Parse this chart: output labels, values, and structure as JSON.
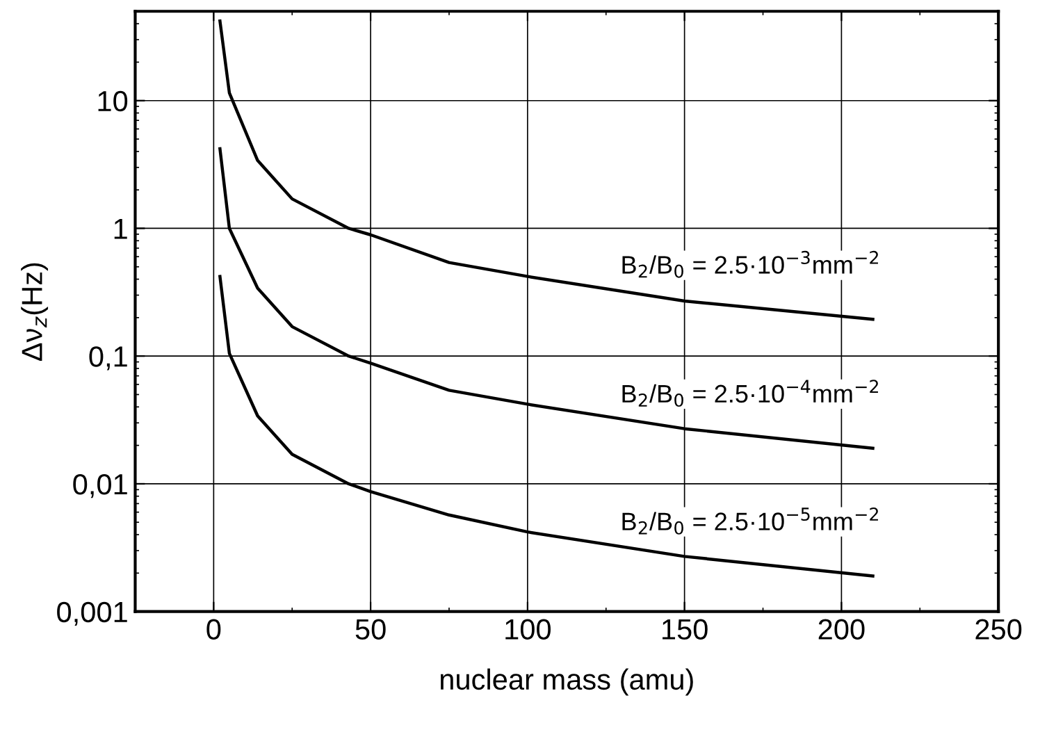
{
  "chart_data": {
    "type": "line",
    "xlabel": "nuclear mass (amu)",
    "ylabel": "Δν$_{z}$(Hz)",
    "log": "y",
    "grid": true,
    "marker": "none",
    "line_style": "solid",
    "xlim": [
      -25,
      250
    ],
    "xticks": [
      0,
      50,
      100,
      150,
      200,
      250
    ],
    "ylim": [
      0.001,
      50
    ],
    "yticks": [
      {
        "value": 0.001,
        "label": "0,001"
      },
      {
        "value": 0.01,
        "label": "0,01"
      },
      {
        "value": 0.1,
        "label": "0,1"
      },
      {
        "value": 1,
        "label": "1"
      },
      {
        "value": 10,
        "label": "10"
      }
    ],
    "x": [
      2,
      5,
      14,
      25,
      43,
      50,
      75,
      100,
      150,
      210
    ],
    "series": [
      {
        "color": "#000000",
        "values": [
          42,
          11.5,
          3.4,
          1.7,
          1.0,
          0.89,
          0.54,
          0.42,
          0.27,
          0.194
        ]
      },
      {
        "color": "#000000",
        "values": [
          4.2,
          1.0,
          0.34,
          0.17,
          0.1,
          0.088,
          0.054,
          0.042,
          0.027,
          0.019
        ]
      },
      {
        "color": "#000000",
        "values": [
          0.42,
          0.105,
          0.034,
          0.017,
          0.01,
          0.0087,
          0.0057,
          0.0042,
          0.0027,
          0.0019
        ]
      }
    ],
    "annotations": [
      "B$_{2}$/B$_{0}$ = 2.5·10$^{−3}$mm$^{−2}$",
      "B$_{2}$/B$_{0}$ = 2.5·10$^{−4}$mm$^{−2}$",
      "B$_{2}$/B$_{0}$ = 2.5·10$^{−5}$mm$^{−2}$"
    ]
  }
}
